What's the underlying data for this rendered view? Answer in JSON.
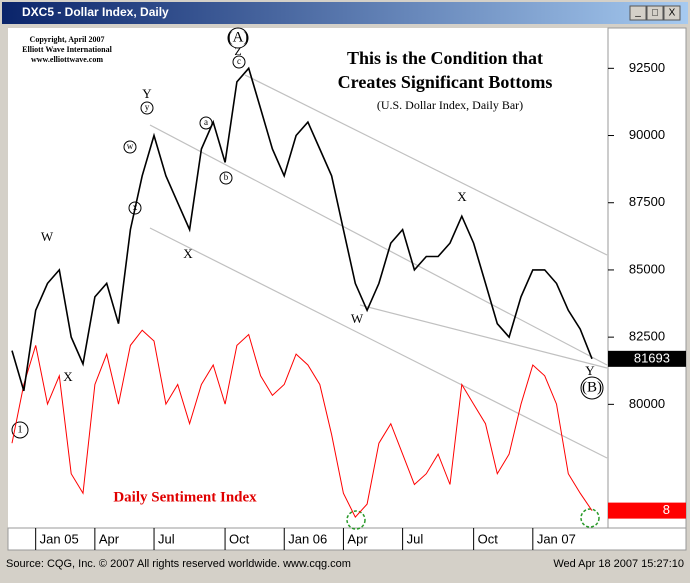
{
  "window_title": "DXC5 - Dollar Index, Daily",
  "window_buttons": [
    "_",
    "□",
    "X"
  ],
  "footer": {
    "source": "Source: CQG, Inc. © 2007 All rights reserved worldwide. www.cqg.com",
    "timestamp": "Wed Apr 18 2007 15:27:10"
  },
  "chart_data": {
    "type": "line",
    "title": [
      "This is the Condition that",
      "Creates Significant Bottoms"
    ],
    "subtitle": "(U.S. Dollar Index, Daily Bar)",
    "copyright": [
      "Copyright, April 2007",
      "Elliott Wave International",
      "www.elliottwave.com"
    ],
    "annotations": [
      "(A)",
      "Z",
      "(B)",
      "Y",
      "W",
      "X",
      "X",
      "W",
      "X",
      "Y",
      "a",
      "b",
      "c",
      "w",
      "x",
      "y",
      "1"
    ],
    "categories": [
      null,
      null,
      "Jan 05",
      null,
      null,
      null,
      null,
      "Apr",
      null,
      null,
      null,
      null,
      "Jul",
      null,
      null,
      null,
      null,
      null,
      "Oct",
      null,
      null,
      null,
      null,
      "Jan 06",
      null,
      null,
      null,
      null,
      "Apr",
      null,
      null,
      null,
      null,
      "Jul",
      null,
      null,
      null,
      null,
      null,
      "Oct",
      null,
      null,
      null,
      null,
      "Jan 07",
      null,
      null,
      null,
      null,
      null
    ],
    "series": [
      {
        "color": "#000000",
        "values": [
          82000,
          80500,
          83500,
          84500,
          85000,
          82500,
          81500,
          84000,
          84500,
          83000,
          86500,
          88500,
          90000,
          88500,
          87500,
          86500,
          89500,
          90500,
          89000,
          92000,
          92500,
          91000,
          89500,
          88500,
          90000,
          90500,
          89500,
          88500,
          86500,
          84500,
          83500,
          84500,
          86000,
          86500,
          85000,
          85500,
          85500,
          86000,
          87000,
          86000,
          84500,
          83000,
          82500,
          84000,
          85000,
          85000,
          84500,
          83500,
          82800,
          81693
        ]
      },
      {
        "name": "Daily Sentiment Index",
        "color": "#ff0000",
        "axis": "y2",
        "values": [
          39,
          66,
          84,
          57,
          70,
          25,
          16,
          66,
          80,
          57,
          84,
          91,
          86,
          57,
          66,
          48,
          66,
          75,
          57,
          84,
          89,
          70,
          61,
          66,
          80,
          75,
          66,
          43,
          16,
          5,
          11,
          39,
          48,
          34,
          20,
          25,
          34,
          20,
          66,
          57,
          48,
          25,
          34,
          57,
          75,
          70,
          57,
          25,
          16,
          8
        ]
      }
    ],
    "ylim": [
      75400,
      94000
    ],
    "yticks": [
      80000,
      82500,
      85000,
      87500,
      90000,
      92500
    ],
    "y2lim": [
      0,
      230
    ]
  }
}
